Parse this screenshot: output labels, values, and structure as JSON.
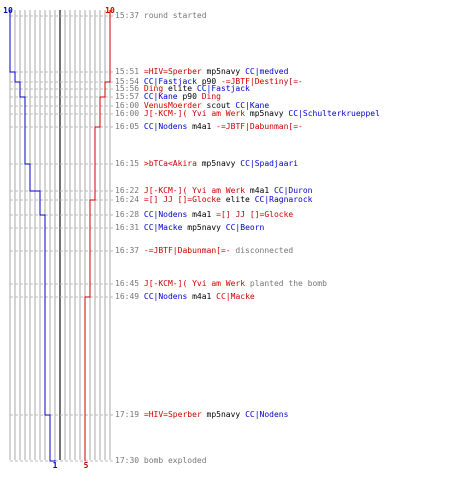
{
  "colors": {
    "red_team": "#cc0000",
    "blue_team": "#0000cc",
    "neutral": "#777777",
    "grid": "#aaaaaa",
    "center": "#444444"
  },
  "top_left_count": "10",
  "top_right_count": "10",
  "bottom_blue_count": "1",
  "bottom_red_count": "5",
  "events": [
    {
      "time": "15:37",
      "parts": [
        {
          "t": "round started",
          "c": "gray"
        }
      ]
    },
    {
      "time": "15:51",
      "parts": [
        {
          "t": "=HIV=Sperber",
          "c": "red"
        },
        {
          "t": " mp5navy ",
          "c": "black"
        },
        {
          "t": "CC|medved",
          "c": "blue"
        }
      ]
    },
    {
      "time": "15:54",
      "parts": [
        {
          "t": "CC|Fastjack",
          "c": "blue"
        },
        {
          "t": " p90 ",
          "c": "black"
        },
        {
          "t": "-=JBTF|Destiny[=-",
          "c": "red"
        }
      ]
    },
    {
      "time": "15:56",
      "parts": [
        {
          "t": "Ding",
          "c": "red"
        },
        {
          "t": " elite ",
          "c": "black"
        },
        {
          "t": "CC|Fastjack",
          "c": "blue"
        }
      ]
    },
    {
      "time": "15:57",
      "parts": [
        {
          "t": "CC|Kane",
          "c": "blue"
        },
        {
          "t": " p90 ",
          "c": "black"
        },
        {
          "t": "Ding",
          "c": "red"
        }
      ]
    },
    {
      "time": "16:00",
      "parts": [
        {
          "t": "VenusMoerder",
          "c": "red"
        },
        {
          "t": " scout ",
          "c": "black"
        },
        {
          "t": "CC|Kane",
          "c": "blue"
        }
      ]
    },
    {
      "time": "16:00",
      "parts": [
        {
          "t": "J[-KCM-]( Yvi am Werk",
          "c": "red"
        },
        {
          "t": " mp5navy ",
          "c": "black"
        },
        {
          "t": "CC|Schulterkrueppel",
          "c": "blue"
        }
      ]
    },
    {
      "time": "16:05",
      "parts": [
        {
          "t": "CC|Nodens",
          "c": "blue"
        },
        {
          "t": " m4a1 ",
          "c": "black"
        },
        {
          "t": "-=JBTF|Dabunman[=-",
          "c": "red"
        }
      ]
    },
    {
      "time": "16:15",
      "parts": [
        {
          "t": ">bTCa<Akira",
          "c": "red"
        },
        {
          "t": " mp5navy ",
          "c": "black"
        },
        {
          "t": "CC|Spadjaari",
          "c": "blue"
        }
      ]
    },
    {
      "time": "16:22",
      "parts": [
        {
          "t": "J[-KCM-]( Yvi am Werk",
          "c": "red"
        },
        {
          "t": " m4a1 ",
          "c": "black"
        },
        {
          "t": "CC|Duron",
          "c": "blue"
        }
      ]
    },
    {
      "time": "16:24",
      "parts": [
        {
          "t": "=[] JJ []=Glocke",
          "c": "red"
        },
        {
          "t": " elite ",
          "c": "black"
        },
        {
          "t": "CC|Ragnarock",
          "c": "blue"
        }
      ]
    },
    {
      "time": "16:28",
      "parts": [
        {
          "t": "CC|Nodens",
          "c": "blue"
        },
        {
          "t": " m4a1 ",
          "c": "black"
        },
        {
          "t": "=[] JJ []=Glocke",
          "c": "red"
        }
      ]
    },
    {
      "time": "16:31",
      "parts": [
        {
          "t": "CC|Macke",
          "c": "blue"
        },
        {
          "t": " mp5navy ",
          "c": "black"
        },
        {
          "t": "CC|Beorn",
          "c": "blue"
        }
      ]
    },
    {
      "time": "16:37",
      "parts": [
        {
          "t": "-=JBTF|Dabunman[=-",
          "c": "red"
        },
        {
          "t": " disconnected",
          "c": "gray"
        }
      ]
    },
    {
      "time": "16:45",
      "parts": [
        {
          "t": "J[-KCM-]( Yvi am Werk",
          "c": "red"
        },
        {
          "t": " planted the bomb",
          "c": "gray"
        }
      ]
    },
    {
      "time": "16:49",
      "parts": [
        {
          "t": "CC|Nodens",
          "c": "blue"
        },
        {
          "t": " m4a1 ",
          "c": "black"
        },
        {
          "t": "CC|Macke",
          "c": "red"
        }
      ]
    },
    {
      "time": "17:19",
      "parts": [
        {
          "t": "=HIV=Sperber",
          "c": "red"
        },
        {
          "t": " mp5navy ",
          "c": "black"
        },
        {
          "t": "CC|Nodens",
          "c": "blue"
        }
      ]
    },
    {
      "time": "17:30",
      "parts": [
        {
          "t": "bomb exploded",
          "c": "gray"
        }
      ]
    }
  ]
}
